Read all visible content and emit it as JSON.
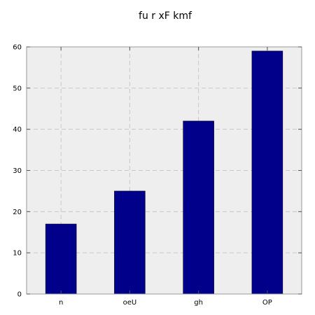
{
  "chart_data": {
    "type": "bar",
    "title": "fu r xF kmf",
    "xlabel": "",
    "ylabel": "",
    "categories": [
      "n",
      "oeU",
      "gh",
      "OP"
    ],
    "values": [
      17,
      25,
      42,
      59
    ],
    "ylim": [
      0,
      60
    ],
    "yticks": [
      "0",
      "10",
      "20",
      "30",
      "40",
      "50",
      "60"
    ],
    "grid": true,
    "bar_color": "#00008b",
    "plot_background": "#eeeeee"
  }
}
